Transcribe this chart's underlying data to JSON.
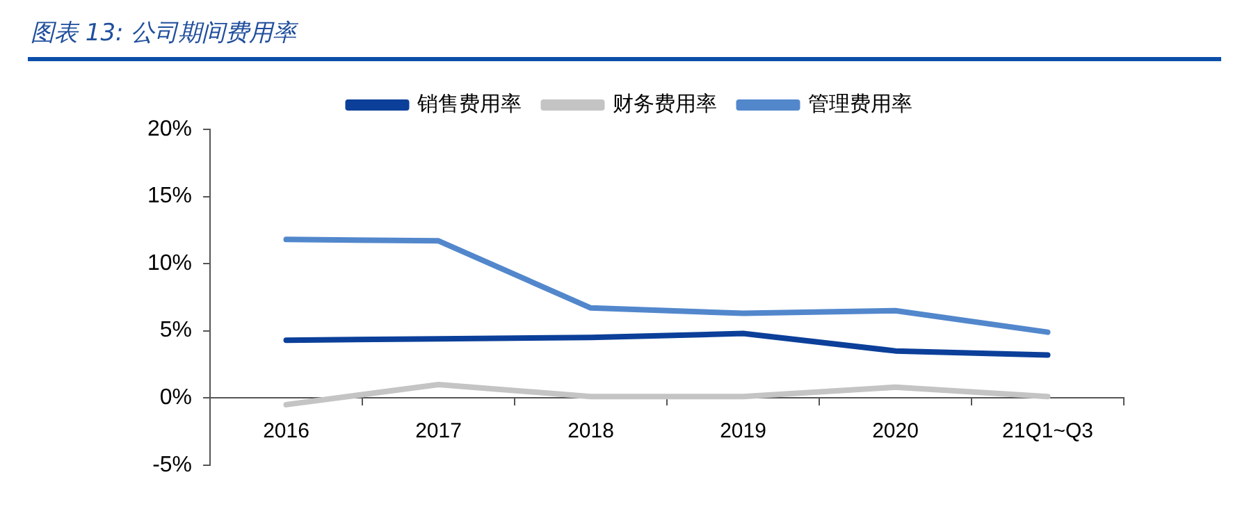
{
  "chart_data": {
    "type": "line",
    "title": "图表 13:  公司期间费用率",
    "categories": [
      "2016",
      "2017",
      "2018",
      "2019",
      "2020",
      "21Q1~Q3"
    ],
    "series": [
      {
        "name": "销售费用率",
        "color": "#0b3f99",
        "values": [
          4.3,
          4.4,
          4.5,
          4.8,
          3.5,
          3.2
        ]
      },
      {
        "name": "财务费用率",
        "color": "#c4c4c4",
        "values": [
          -0.5,
          1.0,
          0.1,
          0.1,
          0.8,
          0.1
        ]
      },
      {
        "name": "管理费用率",
        "color": "#5287cc",
        "values": [
          11.8,
          11.7,
          6.7,
          6.3,
          6.5,
          4.9
        ]
      }
    ],
    "ylim": [
      -5,
      20
    ],
    "yticks": [
      {
        "value": -5,
        "label": "-5%"
      },
      {
        "value": 0,
        "label": "0%"
      },
      {
        "value": 5,
        "label": "5%"
      },
      {
        "value": 10,
        "label": "10%"
      },
      {
        "value": 15,
        "label": "15%"
      },
      {
        "value": 20,
        "label": "20%"
      }
    ],
    "grid": false,
    "legend": "top",
    "marker": "none",
    "line_style": "solid"
  }
}
